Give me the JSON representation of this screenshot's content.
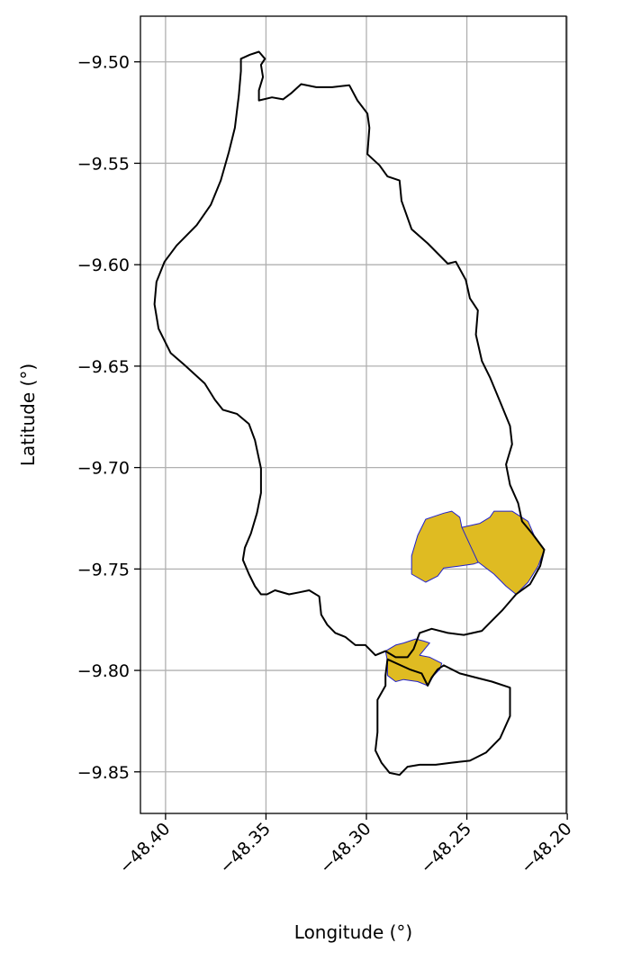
{
  "chart_data": {
    "type": "map",
    "xlabel": "Longitude (°)",
    "ylabel": "Latitude (°)",
    "xlim": [
      -48.4125,
      -48.2005
    ],
    "ylim": [
      -9.8705,
      -9.4775
    ],
    "x_ticks": [
      -48.4,
      -48.35,
      -48.3,
      -48.25,
      -48.2
    ],
    "x_tick_labels": [
      "−48.40",
      "−48.35",
      "−48.30",
      "−48.25",
      "−48.20"
    ],
    "y_ticks": [
      -9.5,
      -9.55,
      -9.6,
      -9.65,
      -9.7,
      -9.75,
      -9.8,
      -9.85
    ],
    "y_tick_labels": [
      "−9.50",
      "−9.55",
      "−9.60",
      "−9.65",
      "−9.70",
      "−9.75",
      "−9.80",
      "−9.85"
    ],
    "grid": true,
    "colors": {
      "boundary": "#000000",
      "highlight_fill": "#dfbb22",
      "highlight_edge": "#2222cc",
      "grid": "#b0b0b0"
    },
    "boundaries": [
      {
        "id": "main-boundary",
        "points": [
          [
            -48.3625,
            -9.4985
          ],
          [
            -48.358,
            -9.4965
          ],
          [
            -48.3535,
            -9.495
          ],
          [
            -48.3505,
            -9.4985
          ],
          [
            -48.3525,
            -9.5015
          ],
          [
            -48.3515,
            -9.5075
          ],
          [
            -48.3535,
            -9.514
          ],
          [
            -48.3535,
            -9.519
          ],
          [
            -48.347,
            -9.5175
          ],
          [
            -48.3415,
            -9.5185
          ],
          [
            -48.3375,
            -9.5155
          ],
          [
            -48.3325,
            -9.511
          ],
          [
            -48.325,
            -9.5125
          ],
          [
            -48.317,
            -9.5125
          ],
          [
            -48.3085,
            -9.5115
          ],
          [
            -48.3045,
            -9.519
          ],
          [
            -48.2995,
            -9.5255
          ],
          [
            -48.2985,
            -9.5325
          ],
          [
            -48.2995,
            -9.5455
          ],
          [
            -48.2935,
            -9.551
          ],
          [
            -48.2895,
            -9.5565
          ],
          [
            -48.2835,
            -9.5585
          ],
          [
            -48.2825,
            -9.5685
          ],
          [
            -48.2775,
            -9.5825
          ],
          [
            -48.2695,
            -9.5895
          ],
          [
            -48.2595,
            -9.5995
          ],
          [
            -48.2555,
            -9.5985
          ],
          [
            -48.2505,
            -9.6075
          ],
          [
            -48.2485,
            -9.6165
          ],
          [
            -48.2445,
            -9.6225
          ],
          [
            -48.2455,
            -9.6345
          ],
          [
            -48.2425,
            -9.6475
          ],
          [
            -48.2385,
            -9.6555
          ],
          [
            -48.2335,
            -9.6675
          ],
          [
            -48.2285,
            -9.6795
          ],
          [
            -48.2275,
            -9.6885
          ],
          [
            -48.2305,
            -9.6985
          ],
          [
            -48.2285,
            -9.7085
          ],
          [
            -48.2245,
            -9.7175
          ],
          [
            -48.2225,
            -9.7265
          ],
          [
            -48.2175,
            -9.7325
          ],
          [
            -48.2115,
            -9.7405
          ],
          [
            -48.2135,
            -9.7485
          ],
          [
            -48.2185,
            -9.7575
          ],
          [
            -48.2255,
            -9.7625
          ],
          [
            -48.2325,
            -9.7705
          ],
          [
            -48.2375,
            -9.7755
          ],
          [
            -48.2425,
            -9.7805
          ],
          [
            -48.2515,
            -9.7825
          ],
          [
            -48.2595,
            -9.7815
          ],
          [
            -48.2675,
            -9.7795
          ],
          [
            -48.2735,
            -9.7815
          ],
          [
            -48.2765,
            -9.7895
          ],
          [
            -48.2795,
            -9.7935
          ],
          [
            -48.2855,
            -9.7935
          ],
          [
            -48.2905,
            -9.7905
          ],
          [
            -48.2955,
            -9.7925
          ],
          [
            -48.3005,
            -9.7875
          ],
          [
            -48.3055,
            -9.7875
          ],
          [
            -48.3105,
            -9.7835
          ],
          [
            -48.3155,
            -9.7815
          ],
          [
            -48.3195,
            -9.7775
          ],
          [
            -48.3225,
            -9.7725
          ],
          [
            -48.3235,
            -9.7635
          ],
          [
            -48.3285,
            -9.7605
          ],
          [
            -48.3335,
            -9.7615
          ],
          [
            -48.3385,
            -9.7625
          ],
          [
            -48.3455,
            -9.7605
          ],
          [
            -48.3495,
            -9.7625
          ],
          [
            -48.3525,
            -9.7625
          ],
          [
            -48.3555,
            -9.7585
          ],
          [
            -48.3585,
            -9.7525
          ],
          [
            -48.3615,
            -9.7455
          ],
          [
            -48.3605,
            -9.7395
          ],
          [
            -48.3575,
            -9.7325
          ],
          [
            -48.3545,
            -9.7225
          ],
          [
            -48.3525,
            -9.7125
          ],
          [
            -48.3525,
            -9.7005
          ],
          [
            -48.3555,
            -9.6865
          ],
          [
            -48.3585,
            -9.6785
          ],
          [
            -48.3645,
            -9.6735
          ],
          [
            -48.3715,
            -9.6715
          ],
          [
            -48.3755,
            -9.6665
          ],
          [
            -48.3805,
            -9.6585
          ],
          [
            -48.3905,
            -9.6495
          ],
          [
            -48.3975,
            -9.6435
          ],
          [
            -48.4035,
            -9.6315
          ],
          [
            -48.4055,
            -9.6195
          ],
          [
            -48.4045,
            -9.6085
          ],
          [
            -48.4005,
            -9.5985
          ],
          [
            -48.3945,
            -9.5905
          ],
          [
            -48.3845,
            -9.5805
          ],
          [
            -48.3775,
            -9.5705
          ],
          [
            -48.3725,
            -9.5585
          ],
          [
            -48.3685,
            -9.5445
          ],
          [
            -48.3655,
            -9.5325
          ],
          [
            -48.3635,
            -9.5165
          ],
          [
            -48.3625,
            -9.5045
          ],
          [
            -48.3625,
            -9.4985
          ]
        ]
      },
      {
        "id": "south-boundary",
        "points": [
          [
            -48.2895,
            -9.7945
          ],
          [
            -48.2785,
            -9.7995
          ],
          [
            -48.2725,
            -9.8015
          ],
          [
            -48.2695,
            -9.8075
          ],
          [
            -48.2675,
            -9.8035
          ],
          [
            -48.2645,
            -9.7995
          ],
          [
            -48.2615,
            -9.7975
          ],
          [
            -48.2535,
            -9.8015
          ],
          [
            -48.2455,
            -9.8035
          ],
          [
            -48.2375,
            -9.8055
          ],
          [
            -48.2285,
            -9.8085
          ],
          [
            -48.2285,
            -9.8225
          ],
          [
            -48.2335,
            -9.8335
          ],
          [
            -48.2405,
            -9.8405
          ],
          [
            -48.2485,
            -9.8445
          ],
          [
            -48.2575,
            -9.8455
          ],
          [
            -48.2655,
            -9.8465
          ],
          [
            -48.2735,
            -9.8465
          ],
          [
            -48.2795,
            -9.8475
          ],
          [
            -48.2835,
            -9.8515
          ],
          [
            -48.2885,
            -9.8505
          ],
          [
            -48.2925,
            -9.8455
          ],
          [
            -48.2955,
            -9.8395
          ],
          [
            -48.2945,
            -9.8305
          ],
          [
            -48.2945,
            -9.8205
          ],
          [
            -48.2945,
            -9.8145
          ],
          [
            -48.2905,
            -9.8075
          ],
          [
            -48.2905,
            -9.8025
          ],
          [
            -48.2895,
            -9.7945
          ]
        ]
      }
    ],
    "highlighted_areas": [
      {
        "id": "east-area-a",
        "points": [
          [
            -48.2745,
            -9.7335
          ],
          [
            -48.2705,
            -9.7255
          ],
          [
            -48.2675,
            -9.7245
          ],
          [
            -48.2615,
            -9.7225
          ],
          [
            -48.2575,
            -9.7215
          ],
          [
            -48.2535,
            -9.7245
          ],
          [
            -48.2525,
            -9.7295
          ],
          [
            -48.2465,
            -9.7305
          ],
          [
            -48.2415,
            -9.7385
          ],
          [
            -48.2405,
            -9.7455
          ],
          [
            -48.2465,
            -9.7475
          ],
          [
            -48.2535,
            -9.7485
          ],
          [
            -48.2615,
            -9.7495
          ],
          [
            -48.2645,
            -9.7535
          ],
          [
            -48.2705,
            -9.7565
          ],
          [
            -48.2775,
            -9.7525
          ],
          [
            -48.2775,
            -9.7435
          ],
          [
            -48.2745,
            -9.7335
          ]
        ]
      },
      {
        "id": "east-area-b",
        "points": [
          [
            -48.2525,
            -9.7295
          ],
          [
            -48.2435,
            -9.7275
          ],
          [
            -48.2385,
            -9.7245
          ],
          [
            -48.2365,
            -9.7215
          ],
          [
            -48.2275,
            -9.7215
          ],
          [
            -48.2195,
            -9.7265
          ],
          [
            -48.2165,
            -9.7335
          ],
          [
            -48.2115,
            -9.7405
          ],
          [
            -48.2145,
            -9.7485
          ],
          [
            -48.2195,
            -9.7565
          ],
          [
            -48.2255,
            -9.7625
          ],
          [
            -48.2305,
            -9.7585
          ],
          [
            -48.2365,
            -9.7525
          ],
          [
            -48.2445,
            -9.7465
          ],
          [
            -48.2525,
            -9.7295
          ]
        ]
      },
      {
        "id": "south-area",
        "points": [
          [
            -48.2905,
            -9.7905
          ],
          [
            -48.2855,
            -9.7875
          ],
          [
            -48.2815,
            -9.7865
          ],
          [
            -48.2785,
            -9.7855
          ],
          [
            -48.2755,
            -9.7845
          ],
          [
            -48.2715,
            -9.7855
          ],
          [
            -48.2685,
            -9.7865
          ],
          [
            -48.2735,
            -9.7925
          ],
          [
            -48.2685,
            -9.7935
          ],
          [
            -48.2625,
            -9.7965
          ],
          [
            -48.2635,
            -9.7995
          ],
          [
            -48.2665,
            -9.8025
          ],
          [
            -48.2695,
            -9.8075
          ],
          [
            -48.2745,
            -9.8055
          ],
          [
            -48.2815,
            -9.8045
          ],
          [
            -48.2855,
            -9.8055
          ],
          [
            -48.2895,
            -9.8025
          ],
          [
            -48.2895,
            -9.7955
          ],
          [
            -48.2905,
            -9.7905
          ]
        ]
      }
    ]
  }
}
